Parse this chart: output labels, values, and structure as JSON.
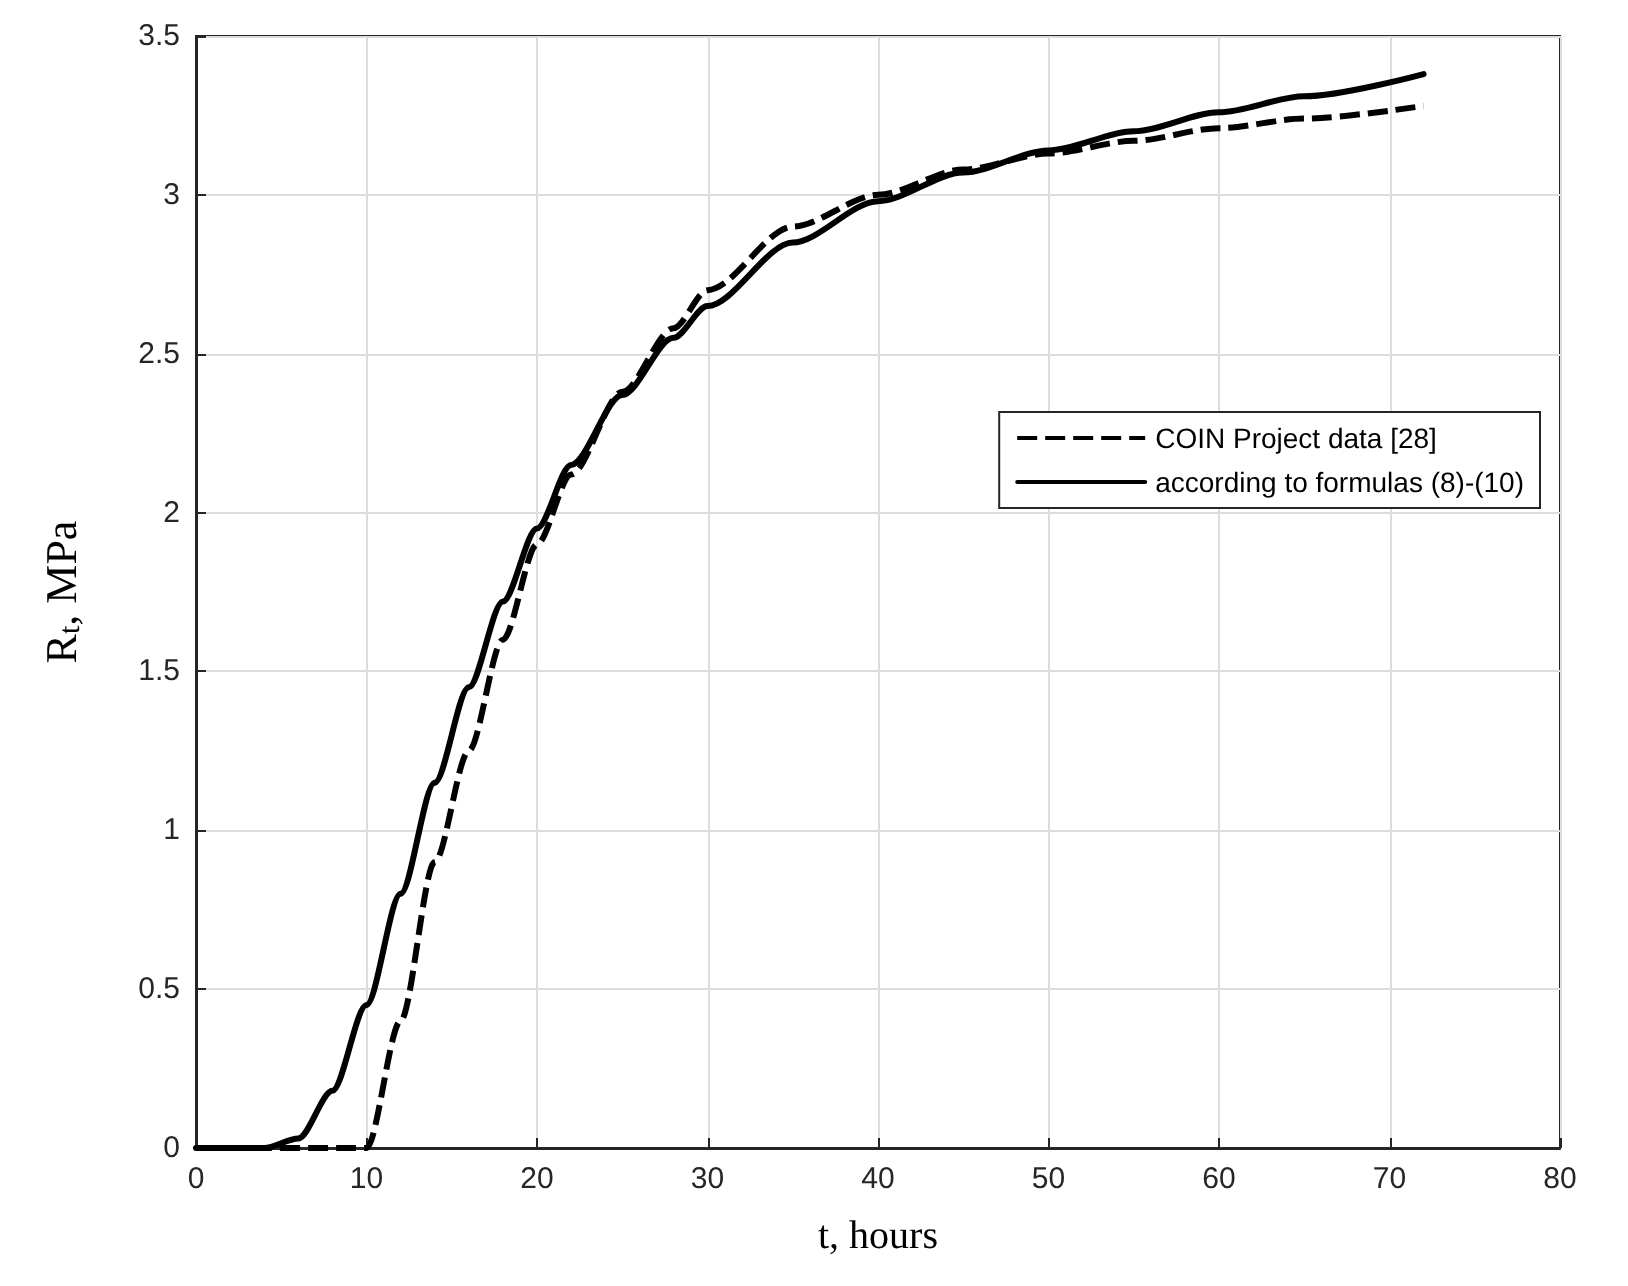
{
  "chart_data": {
    "type": "line",
    "xlabel": "t, hours",
    "ylabel": "R$_{t}$, MPa",
    "xlim": [
      0,
      80
    ],
    "xticks": [
      0,
      10,
      20,
      30,
      40,
      50,
      60,
      70,
      80
    ],
    "ylim": [
      0,
      3.5
    ],
    "yticks": [
      0,
      0.5,
      1,
      1.5,
      2,
      2.5,
      3,
      3.5
    ],
    "grid": true,
    "legend": "right",
    "marker": "none",
    "series": [
      {
        "name": "COIN Project data [28]",
        "color": "#000000",
        "line_style": "dashed",
        "x": [
          0,
          10,
          12,
          14,
          16,
          18,
          20,
          22,
          25,
          28,
          30,
          35,
          40,
          45,
          50,
          55,
          60,
          65,
          72
        ],
        "values": [
          0,
          0,
          0.4,
          0.9,
          1.25,
          1.6,
          1.9,
          2.12,
          2.38,
          2.58,
          2.7,
          2.9,
          3.0,
          3.08,
          3.13,
          3.17,
          3.21,
          3.24,
          3.28
        ]
      },
      {
        "name": "according to formulas (8)-(10)",
        "color": "#000000",
        "line_style": "solid",
        "x": [
          0,
          4,
          6,
          8,
          10,
          12,
          14,
          16,
          18,
          20,
          22,
          25,
          28,
          30,
          35,
          40,
          45,
          50,
          55,
          60,
          65,
          72
        ],
        "values": [
          0,
          0,
          0.03,
          0.18,
          0.45,
          0.8,
          1.15,
          1.45,
          1.72,
          1.95,
          2.15,
          2.37,
          2.55,
          2.65,
          2.85,
          2.98,
          3.07,
          3.14,
          3.2,
          3.26,
          3.31,
          3.38
        ]
      }
    ]
  }
}
